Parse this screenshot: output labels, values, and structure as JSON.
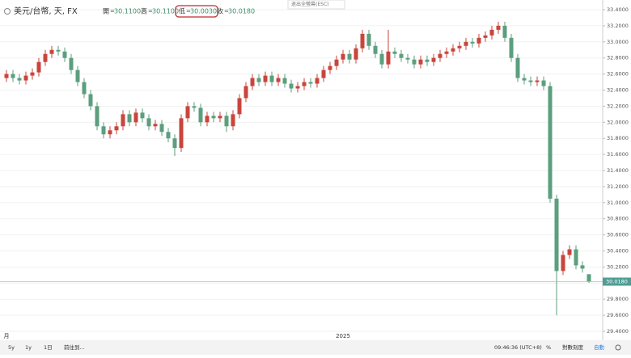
{
  "chart_data": {
    "type": "candlestick",
    "symbol": "美元/台幣, 天, FX",
    "ohlc_header": [
      {
        "label": "開",
        "value": "30.1100"
      },
      {
        "label": "高",
        "value": "30.1100"
      },
      {
        "label": "低",
        "value": "30.0030"
      },
      {
        "label": "收",
        "value": "30.0180"
      }
    ],
    "categories": [
      "月",
      null,
      null,
      null,
      null,
      null,
      null,
      null,
      null,
      null,
      null,
      null,
      null,
      null,
      null,
      null,
      null,
      null,
      null,
      null,
      null,
      null,
      null,
      null,
      null,
      null,
      null,
      null,
      null,
      null,
      null,
      null,
      null,
      null,
      null,
      null,
      null,
      null,
      null,
      null,
      null,
      null,
      null,
      null,
      null,
      null,
      null,
      null,
      null,
      null,
      null,
      null,
      "2025",
      null,
      null,
      null,
      null,
      null,
      null,
      null,
      null,
      null,
      null,
      null,
      null,
      null,
      null,
      null,
      null,
      null,
      null,
      null,
      null,
      null,
      null,
      null,
      null,
      null,
      null,
      null,
      null,
      null,
      null,
      null,
      null,
      null,
      null,
      null,
      null,
      null,
      null
    ],
    "open": [
      32.55,
      32.6,
      32.55,
      32.52,
      32.58,
      32.62,
      32.75,
      32.85,
      32.9,
      32.88,
      32.8,
      32.65,
      32.5,
      32.35,
      32.2,
      31.95,
      31.85,
      31.9,
      31.95,
      32.1,
      32.0,
      32.12,
      32.05,
      31.95,
      31.98,
      31.88,
      31.8,
      31.68,
      32.05,
      32.2,
      32.18,
      32.0,
      32.08,
      32.05,
      32.08,
      31.95,
      32.1,
      32.3,
      32.45,
      32.55,
      32.5,
      32.58,
      32.5,
      32.55,
      32.48,
      32.42,
      32.45,
      32.5,
      32.48,
      32.55,
      32.65,
      32.7,
      32.78,
      32.85,
      32.78,
      32.92,
      33.1,
      32.95,
      32.85,
      32.72,
      32.88,
      32.85,
      32.8,
      32.78,
      32.72,
      32.78,
      32.75,
      32.8,
      32.85,
      32.88,
      32.92,
      32.95,
      33.0,
      32.98,
      33.05,
      33.08,
      33.15,
      33.2,
      33.05,
      32.8,
      32.55,
      32.52,
      32.5,
      32.52,
      32.45,
      31.05,
      30.15,
      30.35,
      30.42,
      30.22,
      30.11
    ],
    "high": [
      32.65,
      32.65,
      32.6,
      32.63,
      32.67,
      32.8,
      32.9,
      32.95,
      32.95,
      32.93,
      32.85,
      32.7,
      32.55,
      32.4,
      32.25,
      32.0,
      31.95,
      32.0,
      32.15,
      32.15,
      32.17,
      32.17,
      32.1,
      32.03,
      32.03,
      31.93,
      31.85,
      32.1,
      32.25,
      32.25,
      32.23,
      32.13,
      32.13,
      32.13,
      32.13,
      32.15,
      32.35,
      32.5,
      32.6,
      32.6,
      32.63,
      32.63,
      32.6,
      32.6,
      32.53,
      32.5,
      32.55,
      32.55,
      32.6,
      32.7,
      32.75,
      32.83,
      32.9,
      32.9,
      32.97,
      33.15,
      33.15,
      33.0,
      32.9,
      33.15,
      32.93,
      32.9,
      32.85,
      32.83,
      32.83,
      32.83,
      32.85,
      32.9,
      32.93,
      32.97,
      33.0,
      33.05,
      33.05,
      33.1,
      33.13,
      33.2,
      33.25,
      33.25,
      33.1,
      32.85,
      32.6,
      32.57,
      32.57,
      32.57,
      32.5,
      31.1,
      30.4,
      30.47,
      30.47,
      30.27,
      30.11
    ],
    "low": [
      32.5,
      32.5,
      32.47,
      32.47,
      32.53,
      32.57,
      32.7,
      32.8,
      32.83,
      32.75,
      32.6,
      32.45,
      32.3,
      32.15,
      31.9,
      31.8,
      31.8,
      31.85,
      31.9,
      31.95,
      31.95,
      32.0,
      31.9,
      31.9,
      31.83,
      31.75,
      31.58,
      31.63,
      32.0,
      32.13,
      31.95,
      31.95,
      32.0,
      32.0,
      31.88,
      31.9,
      32.05,
      32.25,
      32.4,
      32.45,
      32.45,
      32.45,
      32.45,
      32.43,
      32.37,
      32.37,
      32.4,
      32.43,
      32.43,
      32.5,
      32.6,
      32.65,
      32.73,
      32.73,
      32.73,
      32.87,
      32.9,
      32.8,
      32.67,
      32.67,
      32.8,
      32.75,
      32.73,
      32.67,
      32.67,
      32.7,
      32.7,
      32.75,
      32.8,
      32.83,
      32.87,
      32.9,
      32.93,
      32.93,
      33.0,
      33.03,
      33.1,
      33.0,
      32.75,
      32.5,
      32.47,
      32.45,
      32.45,
      32.4,
      31.0,
      29.6,
      30.1,
      30.3,
      30.17,
      30.13,
      30.003
    ],
    "close": [
      32.6,
      32.55,
      32.52,
      32.58,
      32.62,
      32.75,
      32.85,
      32.9,
      32.88,
      32.8,
      32.65,
      32.5,
      32.35,
      32.2,
      31.95,
      31.85,
      31.9,
      31.95,
      32.1,
      32.0,
      32.12,
      32.05,
      31.95,
      31.98,
      31.88,
      31.8,
      31.68,
      32.05,
      32.2,
      32.18,
      32.0,
      32.08,
      32.05,
      32.08,
      31.95,
      32.1,
      32.3,
      32.45,
      32.55,
      32.5,
      32.58,
      32.5,
      32.55,
      32.48,
      32.42,
      32.45,
      32.5,
      32.48,
      32.55,
      32.65,
      32.7,
      32.78,
      32.85,
      32.78,
      32.92,
      33.1,
      32.95,
      32.85,
      32.72,
      32.88,
      32.85,
      32.8,
      32.78,
      32.72,
      32.78,
      32.75,
      32.8,
      32.85,
      32.88,
      32.92,
      32.95,
      33.0,
      32.98,
      33.05,
      33.08,
      33.15,
      33.2,
      33.05,
      32.8,
      32.55,
      32.52,
      32.5,
      32.52,
      32.45,
      31.05,
      30.15,
      30.35,
      30.42,
      30.22,
      30.18,
      30.018
    ],
    "up_color": "#c9453c",
    "down_color": "#5b9f7e",
    "last_price": {
      "value": 30.018,
      "label": "30.0180"
    },
    "ylim": [
      29.4,
      33.4
    ],
    "yticks": [
      {
        "value": 29.4,
        "label": "29.4000"
      },
      {
        "value": 29.6,
        "label": "29.6000"
      },
      {
        "value": 29.8,
        "label": "29.8000"
      },
      {
        "value": 30.0,
        "label": "30.0000"
      },
      {
        "value": 30.2,
        "label": "30.2000"
      },
      {
        "value": 30.4,
        "label": "30.4000"
      },
      {
        "value": 30.6,
        "label": "30.6000"
      },
      {
        "value": 30.8,
        "label": "30.8000"
      },
      {
        "value": 31.0,
        "label": "31.0000"
      },
      {
        "value": 31.2,
        "label": "31.2000"
      },
      {
        "value": 31.4,
        "label": "31.4000"
      },
      {
        "value": 31.6,
        "label": "31.6000"
      },
      {
        "value": 31.8,
        "label": "31.8000"
      },
      {
        "value": 32.0,
        "label": "32.0000"
      },
      {
        "value": 32.2,
        "label": "32.2000"
      },
      {
        "value": 32.4,
        "label": "32.4000"
      },
      {
        "value": 32.6,
        "label": "32.6000"
      },
      {
        "value": 32.8,
        "label": "32.8000"
      },
      {
        "value": 33.0,
        "label": "33.0000"
      },
      {
        "value": 33.2,
        "label": "33.2000"
      },
      {
        "value": 33.4,
        "label": "33.4000"
      }
    ],
    "grid": true,
    "log_scale": false
  },
  "tooltip": "退出全螢幕(ESC)",
  "toolbar": {
    "timeframes": [
      "5y",
      "1y",
      "1日"
    ],
    "goto": "前往到...",
    "clock": "09:46:36 (UTC+8)",
    "options": [
      "%",
      "對數刻度",
      "自動"
    ]
  }
}
